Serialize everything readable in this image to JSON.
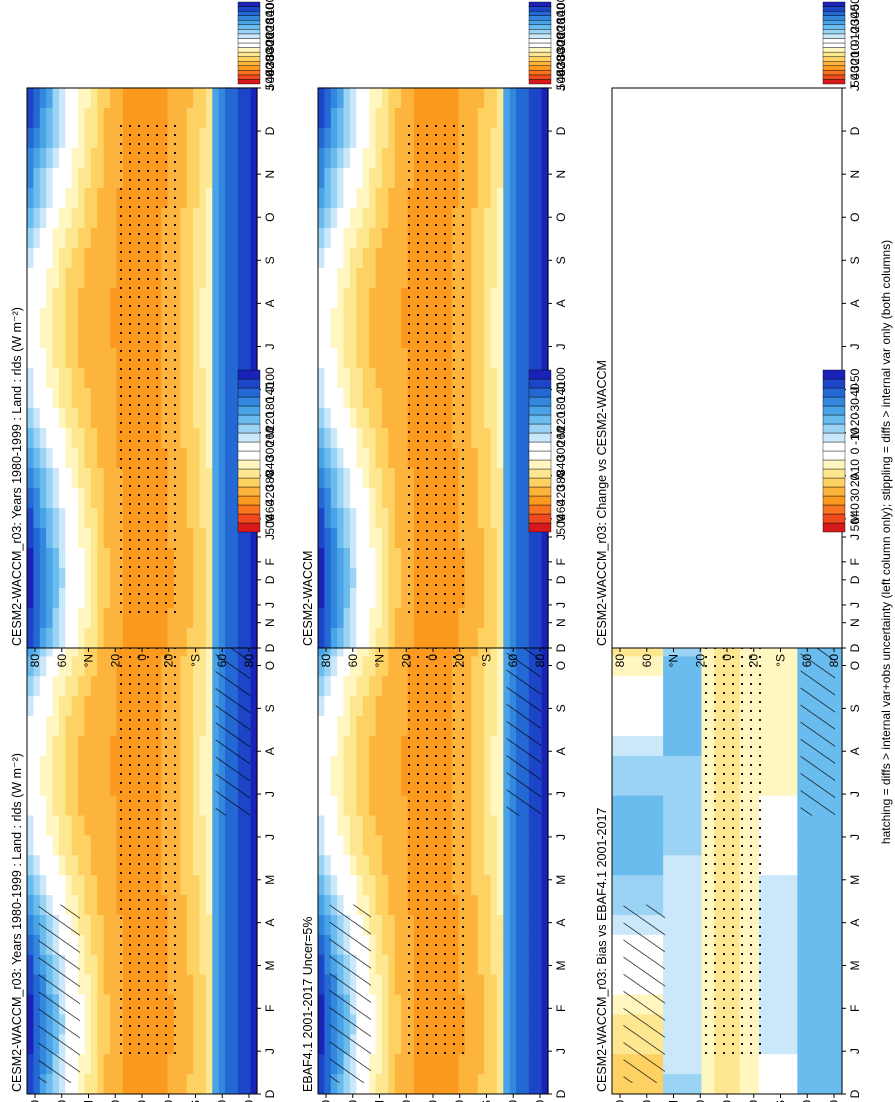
{
  "footnote": "hatching = diffs > internal var+obs uncertainty (left column only); stippling = diffs > internal var only (both columns)",
  "colorbar_abs": {
    "labels": [
      "500",
      "460",
      "420",
      "380",
      "340",
      "300",
      "260",
      "220",
      "180",
      "140",
      "100"
    ],
    "colors": [
      "#d7191c",
      "#ef4a1e",
      "#f9741e",
      "#fb9a1f",
      "#fdb43d",
      "#fdd263",
      "#fde891",
      "#fff6c0",
      "#ffffff",
      "#ffffff",
      "#cbe7fa",
      "#9ad3f3",
      "#6bbcee",
      "#4aa3e6",
      "#3387dc",
      "#2468d4",
      "#1c45c8",
      "#1a22b8"
    ]
  },
  "colorbar_diff": {
    "labels": [
      "50",
      "40",
      "30",
      "20",
      "10",
      "0",
      "-10",
      "-20",
      "-30",
      "-40",
      "-50"
    ],
    "colors": [
      "#d7191c",
      "#ef4a1e",
      "#f9741e",
      "#fb9a1f",
      "#fdb43d",
      "#fdd263",
      "#fde891",
      "#fff6c0",
      "#ffffff",
      "#ffffff",
      "#cbe7fa",
      "#9ad3f3",
      "#6bbcee",
      "#4aa3e6",
      "#3387dc",
      "#2468d4",
      "#1c45c8",
      "#1a22b8"
    ]
  },
  "panels": {
    "left_top": {
      "title": "CESM2-WACCM_r03: Years 1980-1999 : Land : rlds (W m⁻²)"
    },
    "left_mid": {
      "title": "EBAF4.1 2001-2017 Uncer=5%"
    },
    "left_bot": {
      "title": "CESM2-WACCM_r03: Bias vs EBAF4.1 2001-2017"
    },
    "right_top": {
      "title": "CESM2-WACCM_r03: Years 1980-1999 : Land : rlds (W m⁻²)"
    },
    "right_mid": {
      "title": "CESM2-WACCM"
    },
    "right_bot": {
      "title": "CESM2-WACCM_r03: Change vs CESM2-WACCM"
    }
  },
  "chart_data": [
    {
      "type": "heatmap",
      "title": "CESM2-WACCM_r03: Years 1980-1999 : Land : rlds (W m⁻²)",
      "x_ticks": [
        "D",
        "J",
        "F",
        "M",
        "A",
        "M",
        "J",
        "J",
        "A",
        "S",
        "O",
        "N",
        "D",
        "J"
      ],
      "y_ticks": [
        "80",
        "60",
        "°N",
        "20",
        "0",
        "20",
        "°S",
        "60",
        "80"
      ],
      "zlim": [
        100,
        500
      ],
      "approx_profile": {
        "lat": [
          80,
          60,
          40,
          20,
          0,
          -20,
          -40,
          -60,
          -80
        ],
        "jan": [
          180,
          230,
          270,
          330,
          400,
          410,
          330,
          250,
          110
        ],
        "jul": [
          260,
          320,
          360,
          400,
          410,
          370,
          300,
          240,
          120
        ]
      }
    },
    {
      "type": "heatmap",
      "title": "EBAF4.1 2001-2017 Uncer=5%",
      "x_ticks": [
        "D",
        "J",
        "F",
        "M",
        "A",
        "M",
        "J",
        "J",
        "A",
        "S",
        "O",
        "N",
        "D",
        "J"
      ],
      "y_ticks": [
        "80",
        "60",
        "°N",
        "20",
        "0",
        "20",
        "°S",
        "60",
        "80"
      ],
      "zlim": [
        100,
        500
      ]
    },
    {
      "type": "heatmap",
      "title": "CESM2-WACCM_r03: Bias vs EBAF4.1 2001-2017",
      "x_ticks": [
        "D",
        "J",
        "F",
        "M",
        "A",
        "M",
        "J",
        "J",
        "A",
        "S",
        "O",
        "N",
        "D",
        "J"
      ],
      "y_ticks": [
        "80",
        "60",
        "°N",
        "20",
        "0",
        "20",
        "°S",
        "60",
        "80"
      ],
      "zlim": [
        -50,
        50
      ]
    },
    {
      "type": "heatmap",
      "title": "CESM2-WACCM_r03: Years 1980-1999 : Land : rlds (W m⁻²)",
      "x_ticks": [
        "D",
        "J",
        "F",
        "M",
        "A",
        "M",
        "J",
        "J",
        "A",
        "S",
        "O",
        "N",
        "D",
        "J"
      ],
      "y_ticks": [
        "80",
        "60",
        "°N",
        "20",
        "0",
        "20",
        "°S",
        "60",
        "80"
      ],
      "zlim": [
        100,
        500
      ]
    },
    {
      "type": "heatmap",
      "title": "CESM2-WACCM",
      "x_ticks": [
        "D",
        "J",
        "F",
        "M",
        "A",
        "M",
        "J",
        "J",
        "A",
        "S",
        "O",
        "N",
        "D",
        "J"
      ],
      "y_ticks": [
        "80",
        "60",
        "°N",
        "20",
        "0",
        "20",
        "°S",
        "60",
        "80"
      ],
      "zlim": [
        100,
        500
      ]
    },
    {
      "type": "heatmap",
      "title": "CESM2-WACCM_r03: Change vs CESM2-WACCM",
      "x_ticks": [
        "D",
        "J",
        "F",
        "M",
        "A",
        "M",
        "J",
        "J",
        "A",
        "S",
        "O",
        "N",
        "D",
        "J"
      ],
      "y_ticks": [
        "80",
        "60",
        "°N",
        "20",
        "0",
        "20",
        "°S",
        "60",
        "80"
      ],
      "zlim": [
        -50,
        50
      ]
    }
  ]
}
